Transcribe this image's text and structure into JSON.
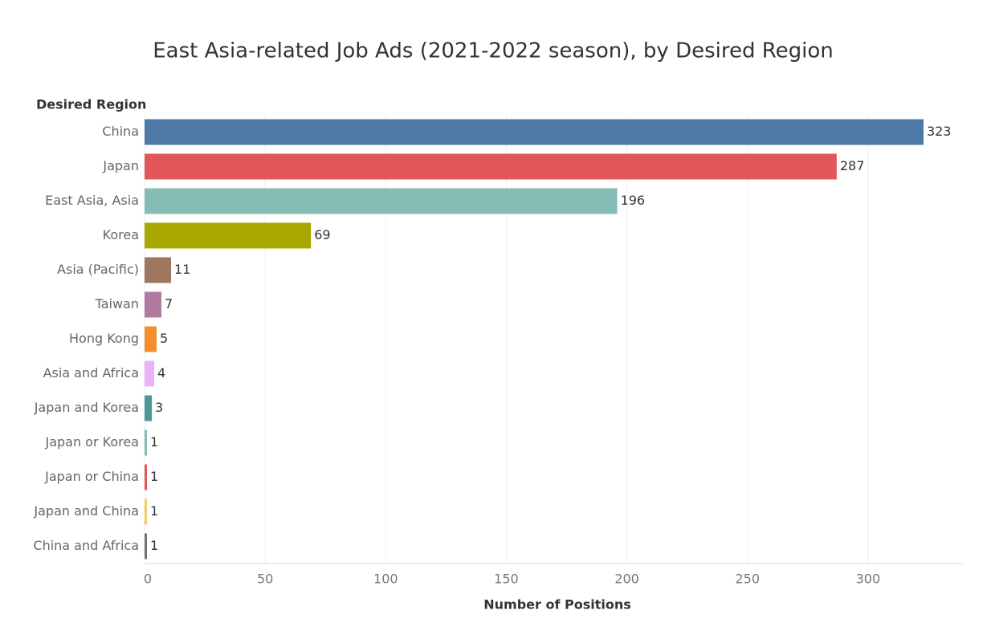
{
  "chart_data": {
    "type": "hbar",
    "title": "East Asia-related Job Ads (2021-2022 season), by Desired Region",
    "category_axis_title": "Desired Region",
    "x_axis_title": "Number of Positions",
    "categories": [
      "China",
      "Japan",
      "East Asia, Asia",
      "Korea",
      "Asia (Pacific)",
      "Taiwan",
      "Hong Kong",
      "Asia and Africa",
      "Japan and Korea",
      "Japan or Korea",
      "Japan or China",
      "Japan and China",
      "China and Africa"
    ],
    "values": [
      323,
      287,
      196,
      69,
      11,
      7,
      5,
      4,
      3,
      1,
      1,
      1,
      1
    ],
    "colors": [
      "#4e79a7",
      "#e15759",
      "#86bcb6",
      "#a8a800",
      "#9d7660",
      "#b07aa1",
      "#f28e2b",
      "#eab3f7",
      "#499894",
      "#86bcb6",
      "#e15759",
      "#f1ce63",
      "#79706e"
    ],
    "xlim": [
      0,
      340
    ],
    "xticks": [
      0,
      50,
      100,
      150,
      200,
      250,
      300
    ],
    "grid": true
  }
}
